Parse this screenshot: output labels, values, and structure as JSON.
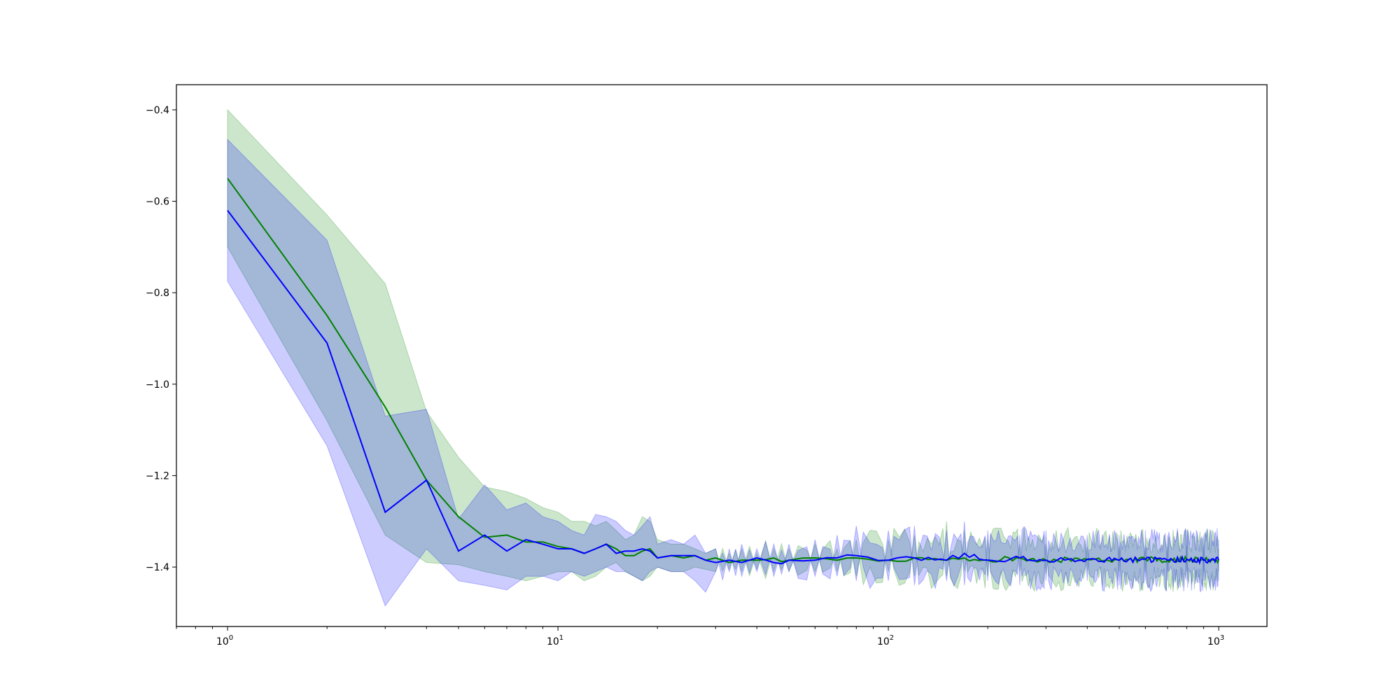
{
  "chart_data": {
    "type": "line",
    "title": "",
    "xlabel": "",
    "ylabel": "",
    "xscale": "log",
    "xlim": [
      0.7,
      1400
    ],
    "ylim": [
      -1.53,
      -0.345
    ],
    "grid": false,
    "legend": "none",
    "x_ticks": [
      {
        "value": 1,
        "base": "10",
        "exp": "0"
      },
      {
        "value": 10,
        "base": "10",
        "exp": "1"
      },
      {
        "value": 100,
        "base": "10",
        "exp": "2"
      },
      {
        "value": 1000,
        "base": "10",
        "exp": "3"
      }
    ],
    "y_ticks": [
      {
        "value": -0.4,
        "label": "−0.4"
      },
      {
        "value": -0.6,
        "label": "−0.6"
      },
      {
        "value": -0.8,
        "label": "−0.8"
      },
      {
        "value": -1.0,
        "label": "−1.0"
      },
      {
        "value": -1.2,
        "label": "−1.2"
      },
      {
        "value": -1.4,
        "label": "−1.4"
      }
    ],
    "series": [
      {
        "color": "#008000",
        "band_color": "#008000",
        "band_opacity": 0.2,
        "x": [
          1,
          2,
          3,
          4,
          5,
          6,
          7,
          8,
          9,
          10,
          11,
          12,
          13,
          14,
          15,
          16,
          17,
          18,
          19,
          20,
          22,
          24,
          26,
          28,
          30,
          33,
          36,
          40,
          45,
          50,
          60,
          70,
          80,
          100,
          120,
          150,
          170,
          200,
          250,
          300,
          400,
          500,
          600,
          700,
          800,
          900,
          1000
        ],
        "y": [
          -0.55,
          -0.85,
          -1.05,
          -1.21,
          -1.29,
          -1.335,
          -1.33,
          -1.345,
          -1.345,
          -1.355,
          -1.36,
          -1.37,
          -1.36,
          -1.35,
          -1.36,
          -1.375,
          -1.375,
          -1.365,
          -1.36,
          -1.38,
          -1.375,
          -1.38,
          -1.375,
          -1.385,
          -1.38,
          -1.39,
          -1.385,
          -1.385,
          -1.38,
          -1.385,
          -1.38,
          -1.385,
          -1.38,
          -1.385,
          -1.38,
          -1.385,
          -1.38,
          -1.385,
          -1.38,
          -1.385,
          -1.383,
          -1.385,
          -1.383,
          -1.385,
          -1.383,
          -1.385,
          -1.385
        ],
        "upper": [
          -0.4,
          -0.63,
          -0.78,
          -1.06,
          -1.16,
          -1.225,
          -1.235,
          -1.25,
          -1.27,
          -1.28,
          -1.3,
          -1.3,
          -1.31,
          -1.3,
          -1.32,
          -1.34,
          -1.33,
          -1.29,
          -1.3,
          -1.34,
          -1.35,
          -1.35,
          -1.36,
          -1.37,
          -1.36,
          -1.37,
          -1.36,
          -1.37,
          -1.36,
          -1.36,
          -1.35,
          -1.36,
          -1.34,
          -1.34,
          -1.33,
          -1.3,
          -1.32,
          -1.34,
          -1.35,
          -1.35,
          -1.355,
          -1.355,
          -1.355,
          -1.355,
          -1.355,
          -1.355,
          -1.36
        ],
        "lower": [
          -0.7,
          -1.08,
          -1.33,
          -1.39,
          -1.395,
          -1.41,
          -1.42,
          -1.43,
          -1.42,
          -1.41,
          -1.41,
          -1.43,
          -1.42,
          -1.4,
          -1.39,
          -1.41,
          -1.42,
          -1.43,
          -1.42,
          -1.4,
          -1.41,
          -1.41,
          -1.4,
          -1.405,
          -1.41,
          -1.405,
          -1.41,
          -1.405,
          -1.41,
          -1.41,
          -1.41,
          -1.41,
          -1.42,
          -1.41,
          -1.42,
          -1.42,
          -1.41,
          -1.42,
          -1.41,
          -1.415,
          -1.41,
          -1.41,
          -1.41,
          -1.41,
          -1.41,
          -1.41,
          -1.41
        ]
      },
      {
        "color": "#0000ff",
        "band_color": "#0000ff",
        "band_opacity": 0.2,
        "x": [
          1,
          2,
          3,
          4,
          5,
          6,
          7,
          8,
          9,
          10,
          11,
          12,
          13,
          14,
          15,
          16,
          17,
          18,
          19,
          20,
          22,
          24,
          26,
          28,
          30,
          33,
          36,
          40,
          45,
          50,
          60,
          70,
          80,
          100,
          120,
          150,
          170,
          200,
          250,
          300,
          400,
          500,
          600,
          700,
          800,
          900,
          1000
        ],
        "y": [
          -0.62,
          -0.91,
          -1.28,
          -1.21,
          -1.365,
          -1.33,
          -1.365,
          -1.34,
          -1.35,
          -1.36,
          -1.36,
          -1.37,
          -1.36,
          -1.35,
          -1.37,
          -1.365,
          -1.365,
          -1.36,
          -1.365,
          -1.38,
          -1.375,
          -1.375,
          -1.375,
          -1.385,
          -1.39,
          -1.385,
          -1.39,
          -1.38,
          -1.39,
          -1.385,
          -1.385,
          -1.38,
          -1.375,
          -1.385,
          -1.38,
          -1.385,
          -1.37,
          -1.385,
          -1.38,
          -1.385,
          -1.383,
          -1.385,
          -1.383,
          -1.385,
          -1.383,
          -1.385,
          -1.385
        ],
        "upper": [
          -0.465,
          -0.685,
          -1.07,
          -1.055,
          -1.295,
          -1.22,
          -1.275,
          -1.26,
          -1.29,
          -1.3,
          -1.32,
          -1.33,
          -1.285,
          -1.29,
          -1.3,
          -1.32,
          -1.33,
          -1.31,
          -1.29,
          -1.35,
          -1.34,
          -1.35,
          -1.33,
          -1.37,
          -1.36,
          -1.36,
          -1.35,
          -1.36,
          -1.35,
          -1.35,
          -1.34,
          -1.33,
          -1.31,
          -1.32,
          -1.31,
          -1.32,
          -1.3,
          -1.32,
          -1.33,
          -1.32,
          -1.33,
          -1.33,
          -1.32,
          -1.33,
          -1.32,
          -1.33,
          -1.34
        ],
        "lower": [
          -0.775,
          -1.135,
          -1.485,
          -1.36,
          -1.43,
          -1.44,
          -1.45,
          -1.42,
          -1.42,
          -1.43,
          -1.41,
          -1.42,
          -1.41,
          -1.4,
          -1.41,
          -1.41,
          -1.42,
          -1.43,
          -1.41,
          -1.4,
          -1.41,
          -1.41,
          -1.43,
          -1.455,
          -1.41,
          -1.41,
          -1.42,
          -1.41,
          -1.42,
          -1.41,
          -1.42,
          -1.42,
          -1.43,
          -1.43,
          -1.44,
          -1.43,
          -1.44,
          -1.43,
          -1.44,
          -1.43,
          -1.43,
          -1.44,
          -1.43,
          -1.43,
          -1.43,
          -1.43,
          -1.43
        ]
      }
    ]
  }
}
